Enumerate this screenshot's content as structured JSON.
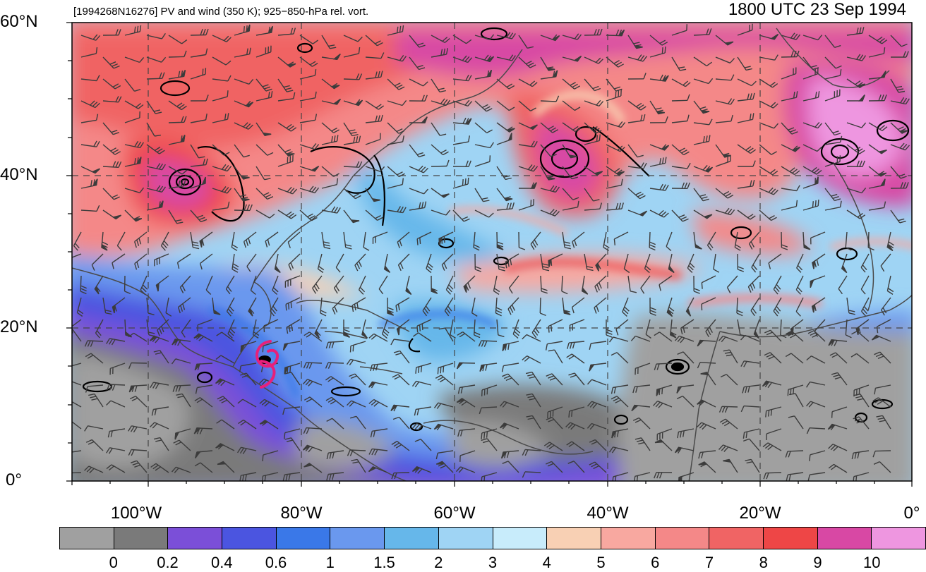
{
  "header": {
    "left_title": "[1994268N16276] PV and wind (350 K); 925−850-hPa rel. vort.",
    "right_title": "1800 UTC 23 Sep 1994"
  },
  "axes": {
    "lat_labels": [
      "60°N",
      "40°N",
      "20°N",
      "0°"
    ],
    "lon_labels": [
      "100°W",
      "80°W",
      "60°W",
      "40°W",
      "20°W",
      "0°"
    ],
    "lon_range": [
      -110,
      0
    ],
    "lat_range": [
      0,
      60
    ]
  },
  "colorbar": {
    "labels": [
      "0",
      "0.2",
      "0.4",
      "0.6",
      "1",
      "1.5",
      "2",
      "3",
      "4",
      "5",
      "6",
      "7",
      "8",
      "9",
      "10"
    ],
    "colors": [
      "#a0a0a0",
      "#7a7a7a",
      "#7b4fd8",
      "#4b55e0",
      "#3a78e8",
      "#6a98ee",
      "#66b7ea",
      "#9fd4f4",
      "#c8ecfb",
      "#f8d0b4",
      "#f8a8a0",
      "#f48888",
      "#f06464",
      "#ee4646",
      "#d848a4",
      "#ee96e0"
    ]
  },
  "storm_symbol": "tropical-cyclone-icon",
  "storm_color": "#e8207a"
}
